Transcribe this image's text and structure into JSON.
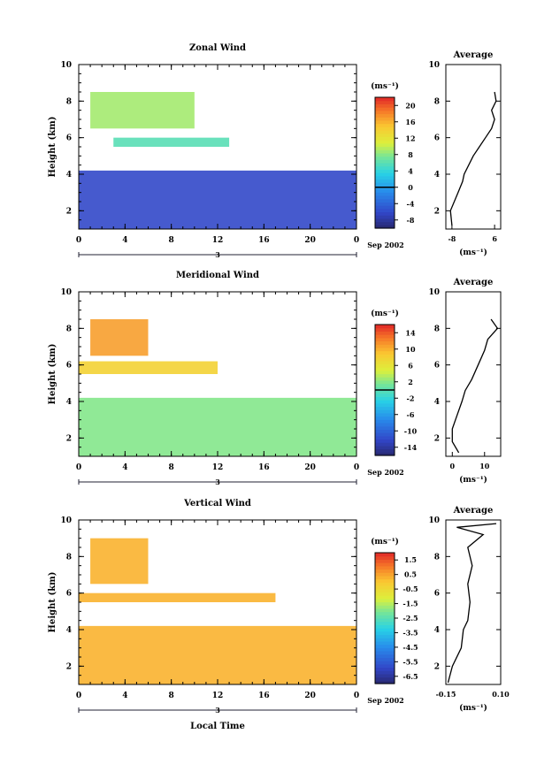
{
  "chart_data": [
    {
      "type": "heatmap",
      "title": "Zonal Wind",
      "ylabel": "Height (km)",
      "ylim": [
        1,
        10
      ],
      "yticks": [
        "2",
        "4",
        "6",
        "8",
        "10"
      ],
      "xlim": [
        0,
        24
      ],
      "xticks": [
        "0",
        "4",
        "8",
        "12",
        "16",
        "20",
        "0"
      ],
      "day_label": "3",
      "date_label": "Sep 2002",
      "colorbar": {
        "unit": "(ms⁻¹)",
        "ticks": [
          "-8",
          "-4",
          "0",
          "4",
          "8",
          "12",
          "16",
          "20"
        ],
        "range": [
          -10,
          22
        ],
        "contour": 0
      },
      "bands": [
        {
          "x": [
            0,
            24
          ],
          "y": [
            1.0,
            4.2
          ],
          "value": -6
        },
        {
          "x": [
            3,
            13
          ],
          "y": [
            5.5,
            6.0
          ],
          "value": 6
        },
        {
          "x": [
            1,
            10
          ],
          "y": [
            6.5,
            8.5
          ],
          "value": 9
        }
      ],
      "average": {
        "title": "Average",
        "xlabel": "(ms⁻¹)",
        "xticks": [
          "-8",
          "6"
        ],
        "xlim": [
          -10,
          8
        ],
        "yticks": [
          "2",
          "4",
          "6",
          "8",
          "10"
        ],
        "ylim": [
          1,
          10
        ],
        "profile": [
          [
            -8,
            1.2
          ],
          [
            -8.5,
            2
          ],
          [
            -6,
            3
          ],
          [
            -4.5,
            3.6
          ],
          [
            -4,
            4
          ],
          [
            -1,
            5
          ],
          [
            1,
            5.5
          ],
          [
            3,
            6
          ],
          [
            5,
            6.5
          ],
          [
            6,
            7
          ],
          [
            5,
            7.5
          ],
          [
            6.5,
            8
          ],
          [
            6,
            8.5
          ]
        ]
      }
    },
    {
      "type": "heatmap",
      "title": "Meridional Wind",
      "ylabel": "Height (km)",
      "ylim": [
        1,
        10
      ],
      "yticks": [
        "2",
        "4",
        "6",
        "8",
        "10"
      ],
      "xlim": [
        0,
        24
      ],
      "xticks": [
        "0",
        "4",
        "8",
        "12",
        "16",
        "20",
        "0"
      ],
      "day_label": "3",
      "date_label": "Sep 2002",
      "colorbar": {
        "unit": "(ms⁻¹)",
        "ticks": [
          "-14",
          "-10",
          "-6",
          "-2",
          "2",
          "6",
          "10",
          "14"
        ],
        "range": [
          -16,
          16
        ],
        "contour": 0
      },
      "bands": [
        {
          "x": [
            0,
            24
          ],
          "y": [
            1.0,
            4.2
          ],
          "value": 2
        },
        {
          "x": [
            0,
            12
          ],
          "y": [
            5.5,
            6.2
          ],
          "value": 8
        },
        {
          "x": [
            1,
            6
          ],
          "y": [
            6.5,
            8.5
          ],
          "value": 11
        }
      ],
      "average": {
        "title": "Average",
        "xlabel": "(ms⁻¹)",
        "xticks": [
          "0",
          "10"
        ],
        "xlim": [
          -2,
          15
        ],
        "yticks": [
          "2",
          "4",
          "6",
          "8",
          "10"
        ],
        "ylim": [
          1,
          10
        ],
        "profile": [
          [
            2,
            1.2
          ],
          [
            0,
            1.8
          ],
          [
            0,
            2.5
          ],
          [
            1,
            3
          ],
          [
            3,
            4
          ],
          [
            4,
            4.6
          ],
          [
            6,
            5.2
          ],
          [
            8,
            6
          ],
          [
            10,
            6.8
          ],
          [
            11,
            7.4
          ],
          [
            14,
            8
          ],
          [
            12,
            8.5
          ]
        ]
      }
    },
    {
      "type": "heatmap",
      "title": "Vertical Wind",
      "ylabel": "Height (km)",
      "xlabel": "Local Time",
      "ylim": [
        1,
        10
      ],
      "yticks": [
        "2",
        "4",
        "6",
        "8",
        "10"
      ],
      "xlim": [
        0,
        24
      ],
      "xticks": [
        "0",
        "4",
        "8",
        "12",
        "16",
        "20",
        "0"
      ],
      "day_label": "3",
      "date_label": "Sep 2002",
      "colorbar": {
        "unit": "(ms⁻¹)",
        "ticks": [
          "-6.5",
          "-5.5",
          "-4.5",
          "-3.5",
          "-2.5",
          "-1.5",
          "-0.5",
          "0.5",
          "1.5"
        ],
        "range": [
          -7,
          2
        ],
        "contour": null
      },
      "bands": [
        {
          "x": [
            0,
            24
          ],
          "y": [
            1.0,
            4.2
          ],
          "value": 0.3
        },
        {
          "x": [
            0,
            17
          ],
          "y": [
            5.5,
            6.0
          ],
          "value": 0.3
        },
        {
          "x": [
            1,
            6
          ],
          "y": [
            6.5,
            9.0
          ],
          "value": 0.3
        }
      ],
      "average": {
        "title": "Average",
        "xlabel": "(ms⁻¹)",
        "xticks": [
          "-0.15",
          "0.10"
        ],
        "xlim": [
          -0.15,
          0.1
        ],
        "yticks": [
          "2",
          "4",
          "6",
          "8",
          "10"
        ],
        "ylim": [
          1,
          10
        ],
        "profile": [
          [
            -0.14,
            1.1
          ],
          [
            -0.12,
            2
          ],
          [
            -0.08,
            3
          ],
          [
            -0.07,
            4
          ],
          [
            -0.05,
            4.5
          ],
          [
            -0.04,
            5.5
          ],
          [
            -0.05,
            6.5
          ],
          [
            -0.03,
            7.5
          ],
          [
            -0.05,
            8.5
          ],
          [
            0.02,
            9.2
          ],
          [
            -0.1,
            9.6
          ],
          [
            0.08,
            9.8
          ]
        ]
      }
    }
  ]
}
